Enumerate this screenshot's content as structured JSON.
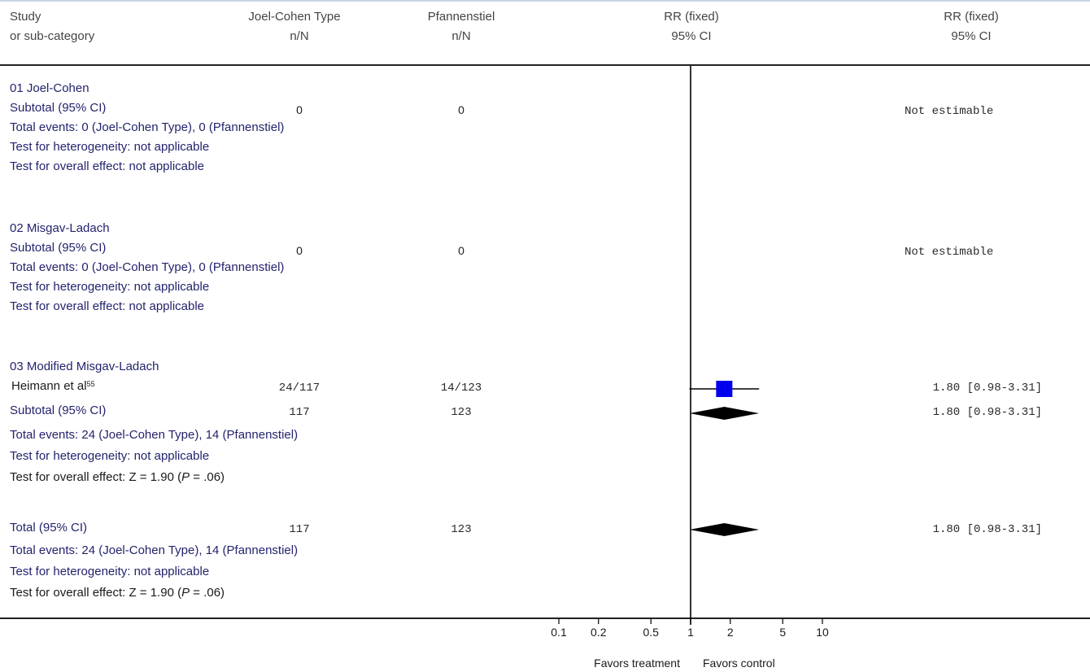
{
  "header": {
    "study": "Study",
    "subcat": "or sub-category",
    "treat_name": "Joel-Cohen Type",
    "treat_nN": "n/N",
    "ctrl_name": "Pfannenstiel",
    "ctrl_nN": "n/N",
    "rr_plot": "RR (fixed)",
    "ci_plot": "95% CI",
    "rr_col": "RR (fixed)",
    "ci_col": "95% CI"
  },
  "groups": [
    {
      "title": "01 Joel-Cohen",
      "subtotal_label": "Subtotal (95% CI)",
      "subtotal_treat": "0",
      "subtotal_ctrl": "0",
      "subtotal_rr": "Not estimable",
      "events": "Total events: 0 (Joel-Cohen Type), 0 (Pfannenstiel)",
      "heterogeneity": "Test for heterogeneity: not applicable",
      "overall": "Test for overall effect: not applicable"
    },
    {
      "title": "02 Misgav-Ladach",
      "subtotal_label": "Subtotal (95% CI)",
      "subtotal_treat": "0",
      "subtotal_ctrl": "0",
      "subtotal_rr": "Not estimable",
      "events": "Total events: 0 (Joel-Cohen Type), 0 (Pfannenstiel)",
      "heterogeneity": "Test for heterogeneity: not applicable",
      "overall": "Test for overall effect: not applicable"
    },
    {
      "title": "03 Modified Misgav-Ladach",
      "study_name": "Heimann et al",
      "study_ref": "55",
      "study_treat": "24/117",
      "study_ctrl": "14/123",
      "study_rr": "1.80 [0.98-3.31]",
      "subtotal_label": "Subtotal (95% CI)",
      "subtotal_treat": "117",
      "subtotal_ctrl": "123",
      "subtotal_rr": "1.80 [0.98-3.31]",
      "events": "Total events: 24 (Joel-Cohen Type), 14 (Pfannenstiel)",
      "heterogeneity": "Test for heterogeneity: not applicable",
      "overall_prefix": "Test for overall effect: Z = 1.90 (",
      "overall_p": "P",
      "overall_suffix": " = .06)"
    }
  ],
  "total": {
    "label": "Total (95% CI)",
    "treat": "117",
    "ctrl": "123",
    "rr": "1.80 [0.98-3.31]",
    "events": "Total events: 24 (Joel-Cohen Type), 14 (Pfannenstiel)",
    "heterogeneity": "Test for heterogeneity: not applicable",
    "overall_prefix": "Test for overall effect: Z = 1.90 (",
    "overall_p": "P",
    "overall_suffix": " = .06)"
  },
  "axis": {
    "ticks": [
      "0.1",
      "0.2",
      "0.5",
      "1",
      "2",
      "5",
      "10"
    ],
    "favors_treatment": "Favors treatment",
    "favors_control": "Favors control"
  },
  "chart_data": {
    "type": "forest",
    "scale": "log",
    "xlim": [
      0.1,
      10
    ],
    "reference_line": 1,
    "square_color": "#0000ee",
    "diamond_color": "#000000",
    "rows": [
      {
        "label": "Heimann et al",
        "kind": "study",
        "rr": 1.8,
        "ci_low": 0.98,
        "ci_high": 3.31
      },
      {
        "label": "Subtotal (95% CI)",
        "kind": "subtotal",
        "rr": 1.8,
        "ci_low": 0.98,
        "ci_high": 3.31
      },
      {
        "label": "Total (95% CI)",
        "kind": "total",
        "rr": 1.8,
        "ci_low": 0.98,
        "ci_high": 3.31
      }
    ]
  }
}
